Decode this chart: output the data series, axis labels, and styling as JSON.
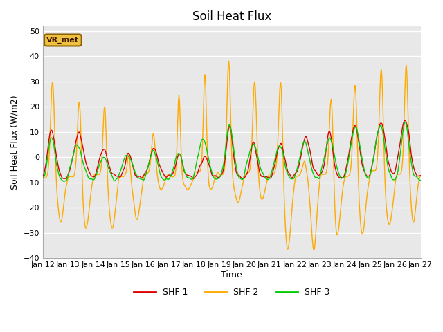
{
  "title": "Soil Heat Flux",
  "ylabel": "Soil Heat Flux (W/m2)",
  "xlabel": "Time",
  "ylim": [
    -40,
    52
  ],
  "yticks": [
    -40,
    -30,
    -20,
    -10,
    0,
    10,
    20,
    30,
    40,
    50
  ],
  "xtick_labels": [
    "Jan 12",
    "Jan 13",
    "Jan 14",
    "Jan 15",
    "Jan 16",
    "Jan 17",
    "Jan 18",
    "Jan 19",
    "Jan 20",
    "Jan 21",
    "Jan 22",
    "Jan 23",
    "Jan 24",
    "Jan 25",
    "Jan 26",
    "Jan 27"
  ],
  "n_days": 15,
  "n_points": 720,
  "colors": {
    "shf1": "#dd0000",
    "shf2": "#ffaa00",
    "shf3": "#00cc00"
  },
  "legend_labels": [
    "SHF 1",
    "SHF 2",
    "SHF 3"
  ],
  "annotation_text": "VR_met",
  "plot_bg_color": "#e8e8e8",
  "fig_bg_color": "#ffffff",
  "title_fontsize": 12,
  "axis_label_fontsize": 9,
  "tick_fontsize": 8,
  "line_width": 1.0,
  "grid_color": "#ffffff",
  "grid_linewidth": 1.0,
  "shf2_day_peaks": [
    34,
    28,
    26,
    3,
    11,
    31,
    41,
    44,
    34,
    37,
    -1,
    33,
    34,
    41,
    42
  ],
  "shf2_day_troughs": [
    -26,
    -29,
    -29,
    -25,
    -13,
    -13,
    -13,
    -18,
    -17,
    -37,
    -38,
    -32,
    -31,
    -27,
    -26
  ],
  "shf1_day_peaks": [
    12,
    10,
    3,
    2,
    4,
    2,
    0,
    13,
    6,
    6,
    8,
    11,
    13,
    14,
    15
  ],
  "shf1_base": -8,
  "shf3_day_peaks": [
    9,
    5,
    1,
    1,
    3,
    2,
    7,
    13,
    5,
    5,
    7,
    8,
    12,
    13,
    14
  ],
  "shf3_base": -9
}
